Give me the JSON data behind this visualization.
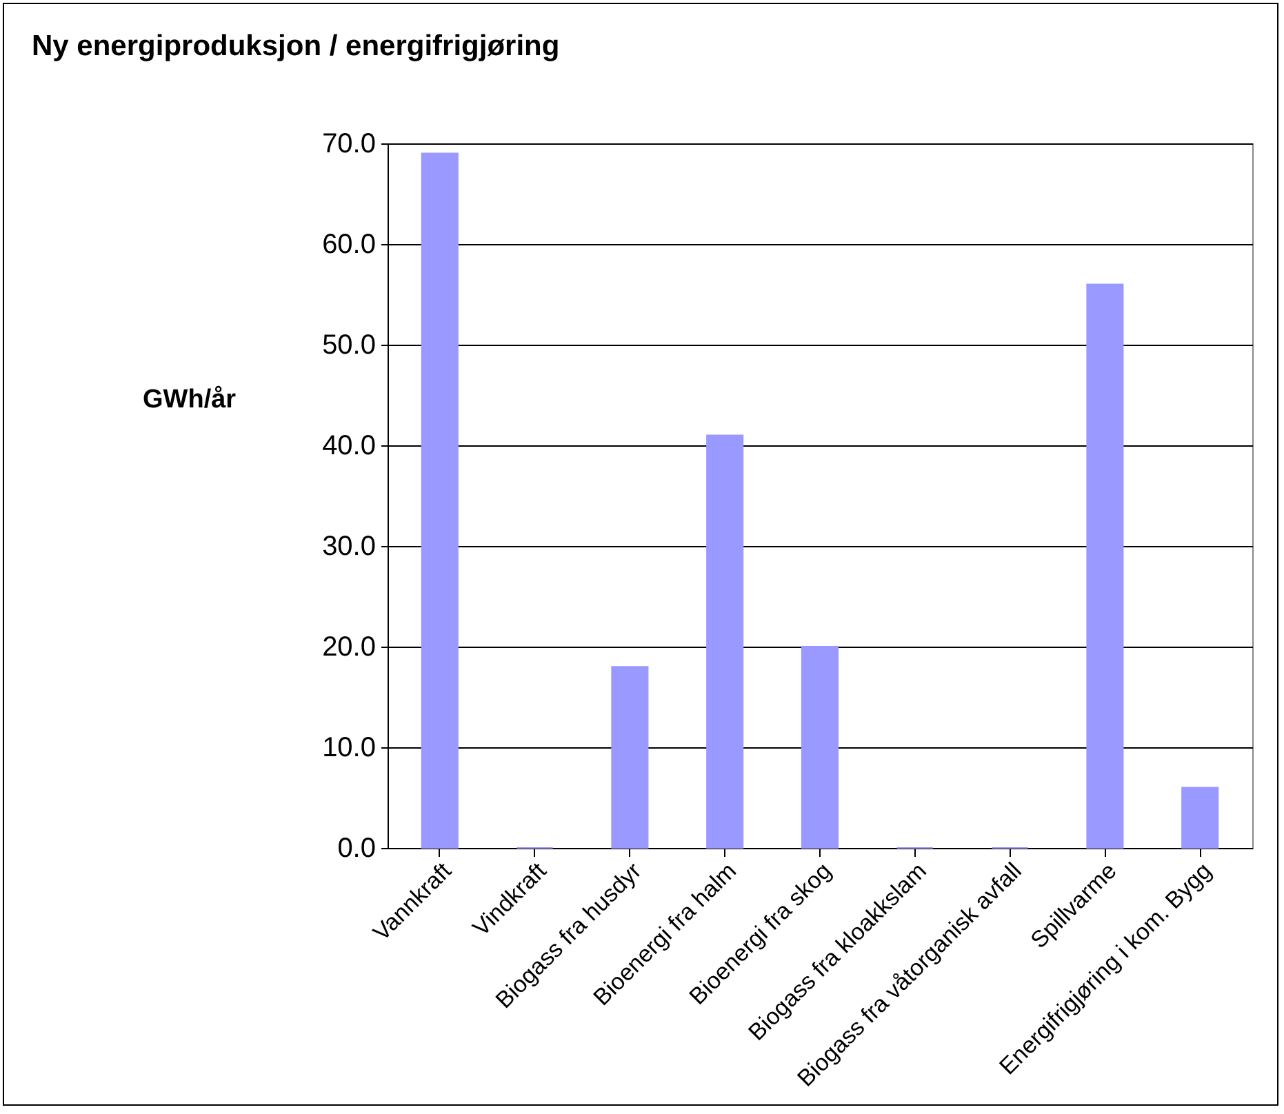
{
  "chart_data": {
    "type": "bar",
    "title": "Ny energiproduksjon / energifrigjøring",
    "ylabel": "GWh/år",
    "categories": [
      "Vannkraft",
      "Vindkraft",
      "Biogass fra husdyr",
      "Bioenergi fra halm",
      "Bioenergi fra skog",
      "Biogass fra kloakkslam",
      "Biogass fra våtorganisk avfall",
      "Spillvarme",
      "Energifrigjøring i kom. Bygg"
    ],
    "values": [
      69,
      0,
      18,
      41,
      20,
      0,
      0,
      56,
      6
    ],
    "color": "#9999ff",
    "ylim": [
      0,
      70
    ],
    "yticks": [
      {
        "value": 0,
        "label": "0.0"
      },
      {
        "value": 10,
        "label": "10.0"
      },
      {
        "value": 20,
        "label": "20.0"
      },
      {
        "value": 30,
        "label": "30.0"
      },
      {
        "value": 40,
        "label": "40.0"
      },
      {
        "value": 50,
        "label": "50.0"
      },
      {
        "value": 60,
        "label": "60.0"
      },
      {
        "value": 70,
        "label": "70.0"
      }
    ],
    "grid": "y"
  }
}
